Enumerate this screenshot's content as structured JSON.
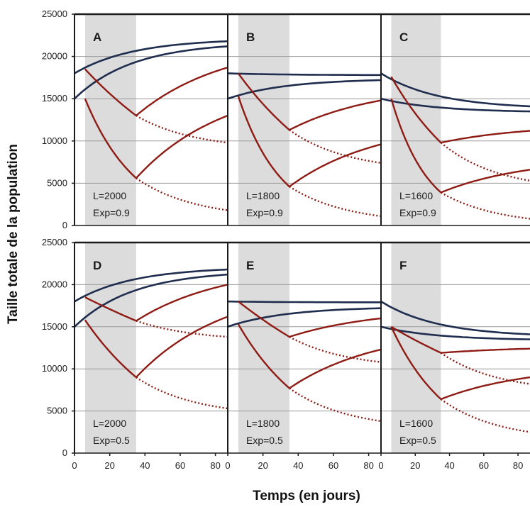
{
  "chart_data": {
    "type": "line",
    "ylabel": "Taille totale de la population",
    "xlabel": "Temps (en jours)",
    "xlim": [
      0,
      87
    ],
    "ylim": [
      0,
      25000
    ],
    "x_ticks": [
      0,
      20,
      40,
      60,
      80
    ],
    "y_ticks": [
      0,
      5000,
      10000,
      15000,
      20000,
      25000
    ],
    "shaded_interval": [
      6,
      35
    ],
    "colors": {
      "dark_series": "#1f2d4f",
      "red_series": "#8e1c15",
      "shade": "#dcdcdc",
      "grid": "#9a9a9a"
    },
    "panels": [
      {
        "letter": "A",
        "L": "L=2000",
        "Exp": "Exp=0.9",
        "row": 0,
        "col": 0,
        "dark": [
          {
            "y0": 18000,
            "yend": 21800
          },
          {
            "y0": 15000,
            "yend": 21200
          }
        ],
        "red": [
          {
            "start": 18500,
            "at35": 13000,
            "solid_end": 18700,
            "dotted_end": 9800
          },
          {
            "start": 15000,
            "at35": 5600,
            "solid_end": 13000,
            "dotted_end": 1800
          }
        ]
      },
      {
        "letter": "B",
        "L": "L=1800",
        "Exp": "Exp=0.9",
        "row": 0,
        "col": 1,
        "dark": [
          {
            "y0": 18000,
            "yend": 17800
          },
          {
            "y0": 15000,
            "yend": 17200
          }
        ],
        "red": [
          {
            "start": 18000,
            "at35": 11300,
            "solid_end": 14800,
            "dotted_end": 7400
          },
          {
            "start": 15300,
            "at35": 4600,
            "solid_end": 9600,
            "dotted_end": 1100
          }
        ]
      },
      {
        "letter": "C",
        "L": "L=1600",
        "Exp": "Exp=0.9",
        "row": 0,
        "col": 2,
        "dark": [
          {
            "y0": 18000,
            "yend": 14100
          },
          {
            "y0": 15000,
            "yend": 13500
          }
        ],
        "red": [
          {
            "start": 17600,
            "at35": 9800,
            "solid_end": 11200,
            "dotted_end": 5300
          },
          {
            "start": 15000,
            "at35": 3900,
            "solid_end": 6600,
            "dotted_end": 800
          }
        ]
      },
      {
        "letter": "D",
        "L": "L=2000",
        "Exp": "Exp=0.5",
        "row": 1,
        "col": 0,
        "dark": [
          {
            "y0": 18000,
            "yend": 21800
          },
          {
            "y0": 15000,
            "yend": 21200
          }
        ],
        "red": [
          {
            "start": 18500,
            "at35": 15700,
            "solid_end": 20000,
            "dotted_end": 13800
          },
          {
            "start": 15800,
            "at35": 9000,
            "solid_end": 16200,
            "dotted_end": 5300
          }
        ]
      },
      {
        "letter": "E",
        "L": "L=1800",
        "Exp": "Exp=0.5",
        "row": 1,
        "col": 1,
        "dark": [
          {
            "y0": 18000,
            "yend": 17900
          },
          {
            "y0": 15000,
            "yend": 17200
          }
        ],
        "red": [
          {
            "start": 18000,
            "at35": 13800,
            "solid_end": 16000,
            "dotted_end": 10800
          },
          {
            "start": 15300,
            "at35": 7700,
            "solid_end": 12300,
            "dotted_end": 3800
          }
        ]
      },
      {
        "letter": "F",
        "L": "L=1600",
        "Exp": "Exp=0.5",
        "row": 1,
        "col": 2,
        "dark": [
          {
            "y0": 18000,
            "yend": 14100
          },
          {
            "y0": 15000,
            "yend": 13500
          }
        ],
        "red": [
          {
            "start": 15000,
            "at35": 11900,
            "solid_end": 12400,
            "dotted_end": 8200
          },
          {
            "start": 15000,
            "at35": 6400,
            "solid_end": 9000,
            "dotted_end": 2500
          }
        ]
      }
    ]
  }
}
